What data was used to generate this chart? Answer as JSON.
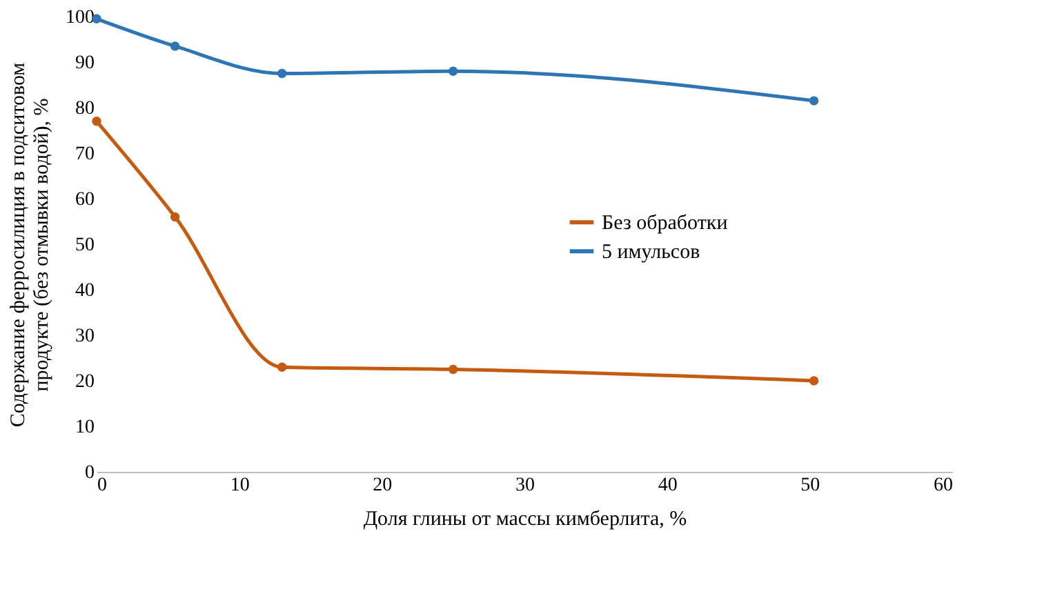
{
  "chart_data": {
    "type": "line",
    "xlabel": "Доля глины от массы кимберлита, %",
    "ylabel": "Содержание ферросилиция в подситовом продукте (без отмывки водой), %",
    "x": [
      0,
      5.5,
      13,
      25,
      50.3
    ],
    "series": [
      {
        "name": "Без обработки",
        "color": "#c55a11",
        "values": [
          77,
          56,
          23,
          22.5,
          20
        ]
      },
      {
        "name": "5 имульсов",
        "color": "#2e75b6",
        "values": [
          99.5,
          93.5,
          87.5,
          88,
          81.5
        ]
      }
    ],
    "xlim": [
      0,
      60
    ],
    "xticks": [
      0,
      10,
      20,
      30,
      40,
      50,
      60
    ],
    "ylim": [
      0,
      100
    ],
    "yticks": [
      0,
      10,
      20,
      30,
      40,
      50,
      60,
      70,
      80,
      90,
      100
    ],
    "grid": false,
    "legend": "right",
    "marker": "circle",
    "line_style": "solid"
  }
}
